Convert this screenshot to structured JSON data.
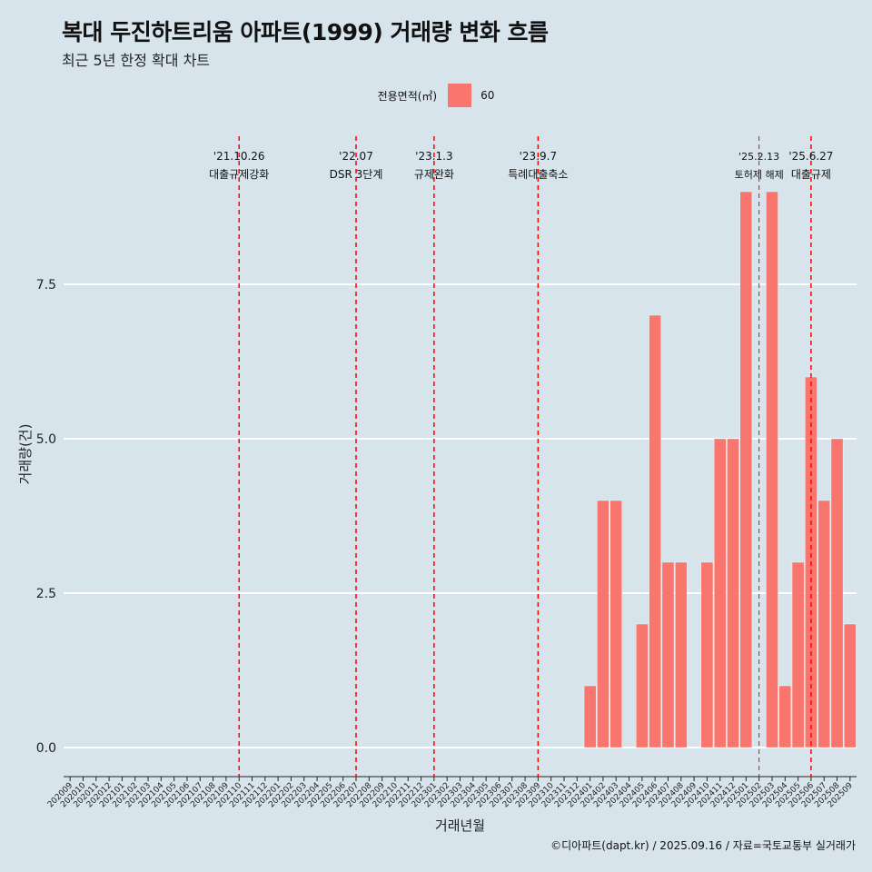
{
  "title": "복대 두진하트리움 아파트(1999) 거래량 변화 흐름",
  "subtitle": "최근 5년 한정 확대 차트",
  "legend": {
    "title": "전용면적(㎡)",
    "item": "60",
    "color": "#f8766d"
  },
  "caption": "©디아파트(dapt.kr) / 2025.09.16 / 자료=국토교통부 실거래가",
  "chart_data": {
    "type": "bar",
    "xlabel": "거래년월",
    "ylabel": "거래량(건)",
    "ylim": [
      0,
      10
    ],
    "yticks": [
      "0.0",
      "2.5",
      "5.0",
      "7.5"
    ],
    "grid": "horizontal",
    "legend_position": "top",
    "bar_color": "#f8766d",
    "categories": [
      "202009",
      "202010",
      "202011",
      "202012",
      "202101",
      "202102",
      "202103",
      "202104",
      "202105",
      "202106",
      "202107",
      "202108",
      "202109",
      "202110",
      "202111",
      "202112",
      "202201",
      "202202",
      "202203",
      "202204",
      "202205",
      "202206",
      "202207",
      "202208",
      "202209",
      "202210",
      "202211",
      "202212",
      "202301",
      "202302",
      "202303",
      "202304",
      "202305",
      "202306",
      "202307",
      "202308",
      "202309",
      "202310",
      "202311",
      "202312",
      "202401",
      "202402",
      "202403",
      "202404",
      "202405",
      "202406",
      "202407",
      "202408",
      "202409",
      "202410",
      "202411",
      "202412",
      "202501",
      "202502",
      "202503",
      "202504",
      "202505",
      "202506",
      "202507",
      "202508",
      "202509"
    ],
    "series": [
      {
        "values": [
          0,
          0,
          0,
          0,
          0,
          0,
          0,
          0,
          0,
          0,
          0,
          0,
          0,
          0,
          0,
          0,
          0,
          0,
          0,
          0,
          0,
          0,
          0,
          0,
          0,
          0,
          0,
          0,
          0,
          0,
          0,
          0,
          0,
          0,
          0,
          0,
          0,
          0,
          0,
          0,
          1,
          4,
          4,
          0,
          2,
          7,
          3,
          3,
          0,
          3,
          5,
          5,
          9,
          0,
          9,
          1,
          3,
          6,
          4,
          5,
          2
        ]
      }
    ],
    "events": [
      {
        "date": "'21.10.26",
        "label": "대출규제강화",
        "at": "202110"
      },
      {
        "date": "'22.07",
        "label": "DSR 3단계",
        "at": "202207"
      },
      {
        "date": "'23.1.3",
        "label": "규제완화",
        "at": "202301"
      },
      {
        "date": "'23.9.7",
        "label": "특례대출축소",
        "at": "202309"
      },
      {
        "date": "'25.2.13",
        "label": "토허제 해제",
        "at": "202502",
        "small": true
      },
      {
        "date": "'25.6.27",
        "label": "대출규제",
        "at": "202506"
      }
    ]
  }
}
